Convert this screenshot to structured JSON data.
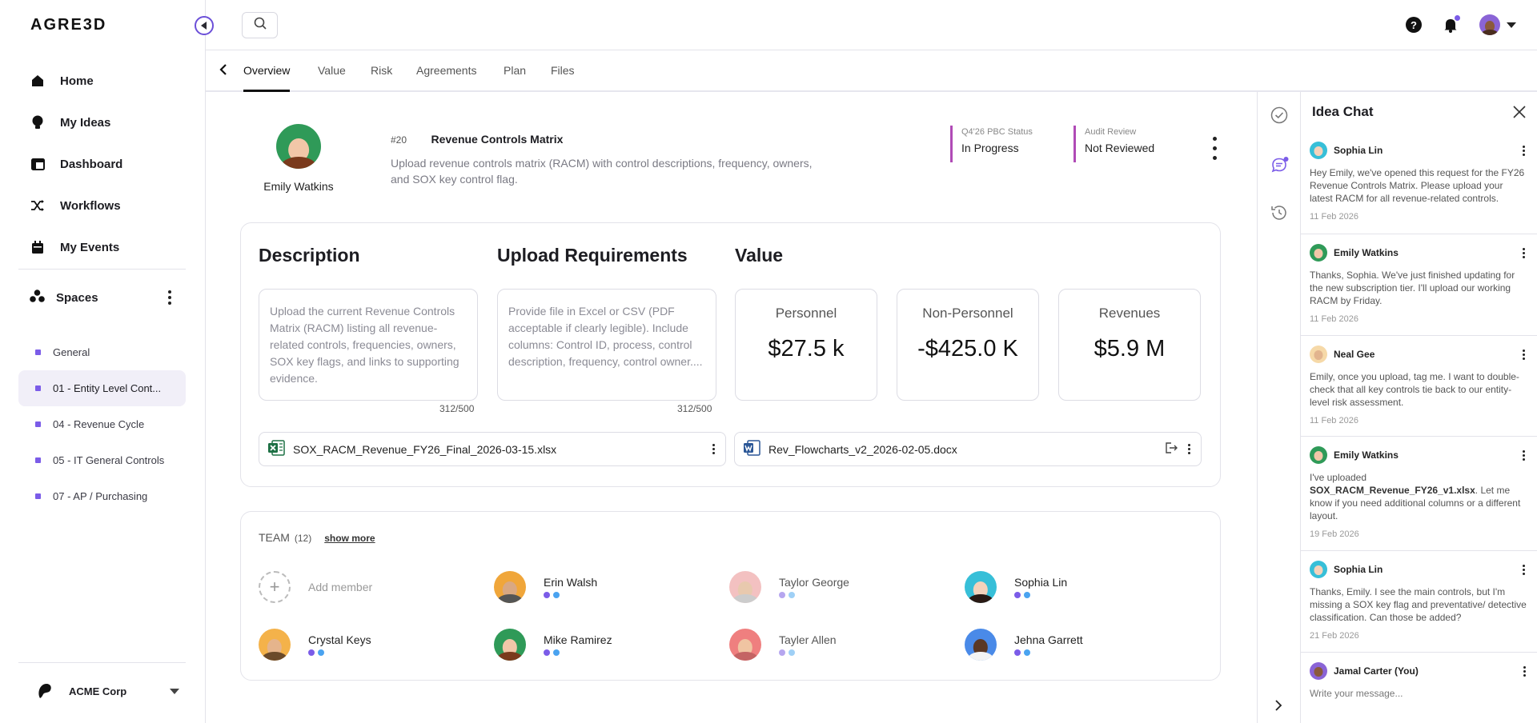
{
  "app": {
    "logo": "AGRE3D"
  },
  "sidebar": {
    "nav": [
      {
        "label": "Home",
        "icon": "home-icon"
      },
      {
        "label": "My Ideas",
        "icon": "lightbulb-icon"
      },
      {
        "label": "Dashboard",
        "icon": "dashboard-icon"
      },
      {
        "label": "Workflows",
        "icon": "shuffle-icon"
      },
      {
        "label": "My Events",
        "icon": "calendar-icon"
      }
    ],
    "spaces_label": "Spaces",
    "spaces": [
      {
        "label": "General"
      },
      {
        "label": "01 - Entity Level Cont..."
      },
      {
        "label": "04 - Revenue Cycle"
      },
      {
        "label": "05 - IT General Controls"
      },
      {
        "label": "07 - AP / Purchasing"
      }
    ],
    "org": "ACME Corp"
  },
  "tabs": [
    "Overview",
    "Value",
    "Risk",
    "Agreements",
    "Plan",
    "Files"
  ],
  "request": {
    "owner_name": "Emily Watkins",
    "number": "#20",
    "title": "Revenue Controls Matrix",
    "description": "Upload revenue controls matrix (RACM) with control descriptions, frequency, owners, and SOX key control flag.",
    "status1_label": "Q4'26 PBC Status",
    "status1_value": "In Progress",
    "status2_label": "Audit Review",
    "status2_value": "Not Reviewed"
  },
  "details": {
    "description_heading": "Description",
    "description_text": "Upload the current Revenue Controls Matrix (RACM) listing all revenue-related controls, frequencies, owners, SOX key flags, and links to supporting evidence.",
    "description_count": "312/500",
    "upload_heading": "Upload Requirements",
    "upload_text": "Provide file in Excel or CSV (PDF acceptable if clearly legible). Include columns: Control ID, process, control description, frequency, control owner....",
    "upload_count": "312/500",
    "value_heading": "Value",
    "values": [
      {
        "label": "Personnel",
        "value": "$27.5 k"
      },
      {
        "label": "Non-Personnel",
        "value": "-$425.0 K"
      },
      {
        "label": "Revenues",
        "value": "$5.9 M"
      }
    ],
    "files": [
      {
        "name": "SOX_RACM_Revenue_FY26_Final_2026-03-15.xlsx",
        "type": "excel"
      },
      {
        "name": "Rev_Flowcharts_v2_2026-02-05.docx",
        "type": "word"
      }
    ]
  },
  "team": {
    "label": "TEAM",
    "count": "(12)",
    "show_more": "show more",
    "add_member": "Add member",
    "members": [
      {
        "name": "Erin Walsh"
      },
      {
        "name": "Taylor George"
      },
      {
        "name": "Sophia Lin"
      },
      {
        "name": "Crystal Keys"
      },
      {
        "name": "Mike Ramirez"
      },
      {
        "name": "Tayler Allen"
      },
      {
        "name": "Jehna Garrett"
      }
    ]
  },
  "chat": {
    "title": "Idea Chat",
    "messages": [
      {
        "author": "Sophia Lin",
        "text": "Hey Emily, we've opened this request for the FY26 Revenue Controls Matrix. Please upload your latest RACM for all revenue-related controls.",
        "date": "11 Feb  2026"
      },
      {
        "author": "Emily Watkins",
        "text": "Thanks, Sophia. We've just finished updating for the new subscription tier. I'll upload our working RACM by Friday.",
        "date": "11 Feb  2026"
      },
      {
        "author": "Neal Gee",
        "text": "Emily, once you upload, tag me. I want to double-check that all key controls tie back to our entity-level risk assessment.",
        "date": "11 Feb  2026"
      },
      {
        "author": "Emily Watkins",
        "text_pre": "I've uploaded ",
        "text_bold": "SOX_RACM_Revenue_FY26_v1.xlsx",
        "text_post": ". Let me know if you need additional columns or a different layout.",
        "date": "19 Feb  2026"
      },
      {
        "author": "Sophia Lin",
        "text": "Thanks, Emily. I see the main controls, but I'm missing a SOX key flag and preventative/ detective classification. Can those be added?",
        "date": "21 Feb  2026"
      }
    ],
    "composer_author": "Jamal Carter (You)",
    "composer_placeholder": "Write your message..."
  },
  "colors": {
    "accent": "#7b5ce8",
    "status_bar": "#b04bb6",
    "dot_blue": "#4aa3f0"
  }
}
